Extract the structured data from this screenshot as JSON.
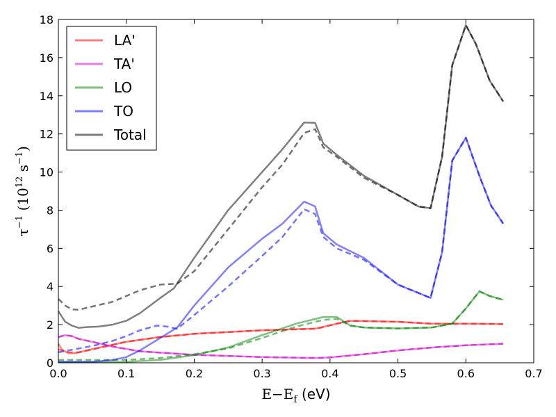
{
  "chart_data": {
    "type": "line",
    "xlabel": "E−E_f (eV)",
    "ylabel": "τ^−1 (10^12 s^−1)",
    "xlim": [
      0.0,
      0.7
    ],
    "ylim": [
      0,
      18
    ],
    "x_ticks": [
      "0.0",
      "0.1",
      "0.2",
      "0.3",
      "0.4",
      "0.5",
      "0.6",
      "0.7"
    ],
    "y_ticks": [
      "0",
      "2",
      "4",
      "6",
      "8",
      "10",
      "12",
      "14",
      "16",
      "18"
    ],
    "x_tick_values": [
      0.0,
      0.1,
      0.2,
      0.3,
      0.4,
      0.5,
      0.6,
      0.7
    ],
    "y_tick_values": [
      0,
      2,
      4,
      6,
      8,
      10,
      12,
      14,
      16,
      18
    ],
    "grid": false,
    "legend_position": "top-left",
    "series": [
      {
        "name": "LA'",
        "color": "#ff0000",
        "solid": [
          [
            0.0,
            1.0
          ],
          [
            0.005,
            0.7
          ],
          [
            0.015,
            0.5
          ],
          [
            0.025,
            0.5
          ],
          [
            0.05,
            0.72
          ],
          [
            0.1,
            1.1
          ],
          [
            0.15,
            1.35
          ],
          [
            0.2,
            1.52
          ],
          [
            0.3,
            1.7
          ],
          [
            0.38,
            1.8
          ],
          [
            0.41,
            2.05
          ],
          [
            0.43,
            2.2
          ],
          [
            0.5,
            2.15
          ],
          [
            0.55,
            2.05
          ],
          [
            0.6,
            2.05
          ],
          [
            0.655,
            2.03
          ]
        ],
        "dashed": [
          [
            0.0,
            0.7
          ],
          [
            0.015,
            0.55
          ],
          [
            0.03,
            0.55
          ],
          [
            0.05,
            0.7
          ],
          [
            0.1,
            1.1
          ],
          [
            0.15,
            1.35
          ],
          [
            0.2,
            1.52
          ],
          [
            0.3,
            1.7
          ],
          [
            0.38,
            1.78
          ],
          [
            0.41,
            2.05
          ],
          [
            0.43,
            2.2
          ],
          [
            0.5,
            2.15
          ],
          [
            0.55,
            2.05
          ],
          [
            0.6,
            2.05
          ],
          [
            0.655,
            2.03
          ]
        ]
      },
      {
        "name": "TA'",
        "color": "#cc00cc",
        "solid": [
          [
            0.0,
            1.35
          ],
          [
            0.01,
            1.45
          ],
          [
            0.02,
            1.4
          ],
          [
            0.03,
            1.25
          ],
          [
            0.05,
            1.1
          ],
          [
            0.08,
            0.85
          ],
          [
            0.12,
            0.6
          ],
          [
            0.2,
            0.42
          ],
          [
            0.3,
            0.3
          ],
          [
            0.38,
            0.25
          ],
          [
            0.4,
            0.28
          ],
          [
            0.45,
            0.45
          ],
          [
            0.5,
            0.65
          ],
          [
            0.55,
            0.8
          ],
          [
            0.6,
            0.92
          ],
          [
            0.655,
            1.0
          ]
        ],
        "dashed": [
          [
            0.0,
            1.35
          ],
          [
            0.01,
            1.45
          ],
          [
            0.02,
            1.4
          ],
          [
            0.03,
            1.25
          ],
          [
            0.05,
            1.1
          ],
          [
            0.08,
            0.85
          ],
          [
            0.12,
            0.6
          ],
          [
            0.2,
            0.42
          ],
          [
            0.3,
            0.3
          ],
          [
            0.38,
            0.25
          ],
          [
            0.4,
            0.28
          ],
          [
            0.45,
            0.45
          ],
          [
            0.5,
            0.65
          ],
          [
            0.55,
            0.8
          ],
          [
            0.6,
            0.92
          ],
          [
            0.655,
            1.0
          ]
        ]
      },
      {
        "name": "LO",
        "color": "#008000",
        "solid": [
          [
            0.0,
            0.05
          ],
          [
            0.1,
            0.05
          ],
          [
            0.15,
            0.15
          ],
          [
            0.2,
            0.4
          ],
          [
            0.25,
            0.8
          ],
          [
            0.3,
            1.45
          ],
          [
            0.35,
            2.05
          ],
          [
            0.39,
            2.4
          ],
          [
            0.41,
            2.4
          ],
          [
            0.43,
            1.95
          ],
          [
            0.45,
            1.85
          ],
          [
            0.5,
            1.8
          ],
          [
            0.55,
            1.85
          ],
          [
            0.58,
            2.05
          ],
          [
            0.6,
            2.85
          ],
          [
            0.62,
            3.75
          ],
          [
            0.635,
            3.5
          ],
          [
            0.655,
            3.3
          ]
        ],
        "dashed": [
          [
            0.0,
            0.15
          ],
          [
            0.1,
            0.15
          ],
          [
            0.15,
            0.25
          ],
          [
            0.2,
            0.45
          ],
          [
            0.25,
            0.75
          ],
          [
            0.3,
            1.3
          ],
          [
            0.35,
            1.9
          ],
          [
            0.39,
            2.25
          ],
          [
            0.41,
            2.3
          ],
          [
            0.43,
            1.95
          ],
          [
            0.45,
            1.85
          ],
          [
            0.5,
            1.8
          ],
          [
            0.55,
            1.85
          ],
          [
            0.58,
            2.05
          ],
          [
            0.6,
            2.85
          ],
          [
            0.62,
            3.75
          ],
          [
            0.635,
            3.5
          ],
          [
            0.655,
            3.3
          ]
        ]
      },
      {
        "name": "TO",
        "color": "#0000ff",
        "solid": [
          [
            0.0,
            0.05
          ],
          [
            0.05,
            0.05
          ],
          [
            0.08,
            0.15
          ],
          [
            0.1,
            0.3
          ],
          [
            0.12,
            0.65
          ],
          [
            0.15,
            1.3
          ],
          [
            0.175,
            1.85
          ],
          [
            0.2,
            3.0
          ],
          [
            0.25,
            5.0
          ],
          [
            0.3,
            6.5
          ],
          [
            0.33,
            7.3
          ],
          [
            0.362,
            8.45
          ],
          [
            0.378,
            8.2
          ],
          [
            0.39,
            6.8
          ],
          [
            0.41,
            6.2
          ],
          [
            0.45,
            5.5
          ],
          [
            0.5,
            4.1
          ],
          [
            0.548,
            3.4
          ],
          [
            0.565,
            5.8
          ],
          [
            0.58,
            10.6
          ],
          [
            0.6,
            11.8
          ],
          [
            0.62,
            9.8
          ],
          [
            0.637,
            8.25
          ],
          [
            0.655,
            7.3
          ]
        ],
        "dashed": [
          [
            0.0,
            0.55
          ],
          [
            0.02,
            0.68
          ],
          [
            0.05,
            0.88
          ],
          [
            0.08,
            1.15
          ],
          [
            0.1,
            1.4
          ],
          [
            0.12,
            1.7
          ],
          [
            0.145,
            1.95
          ],
          [
            0.16,
            1.9
          ],
          [
            0.175,
            1.78
          ],
          [
            0.2,
            2.5
          ],
          [
            0.25,
            4.0
          ],
          [
            0.3,
            5.6
          ],
          [
            0.33,
            6.6
          ],
          [
            0.362,
            8.05
          ],
          [
            0.378,
            7.8
          ],
          [
            0.39,
            6.6
          ],
          [
            0.41,
            6.0
          ],
          [
            0.45,
            5.4
          ],
          [
            0.5,
            4.1
          ],
          [
            0.548,
            3.4
          ],
          [
            0.565,
            5.8
          ],
          [
            0.58,
            10.6
          ],
          [
            0.6,
            11.8
          ],
          [
            0.62,
            9.8
          ],
          [
            0.637,
            8.25
          ],
          [
            0.655,
            7.3
          ]
        ]
      },
      {
        "name": "Total",
        "color": "#000000",
        "solid": [
          [
            0.0,
            2.7
          ],
          [
            0.01,
            2.15
          ],
          [
            0.02,
            1.95
          ],
          [
            0.03,
            1.83
          ],
          [
            0.04,
            1.87
          ],
          [
            0.06,
            1.9
          ],
          [
            0.08,
            2.0
          ],
          [
            0.1,
            2.2
          ],
          [
            0.12,
            2.6
          ],
          [
            0.15,
            3.4
          ],
          [
            0.17,
            3.9
          ],
          [
            0.2,
            5.5
          ],
          [
            0.25,
            8.0
          ],
          [
            0.3,
            10.0
          ],
          [
            0.33,
            11.2
          ],
          [
            0.362,
            12.6
          ],
          [
            0.378,
            12.58
          ],
          [
            0.39,
            11.5
          ],
          [
            0.41,
            10.9
          ],
          [
            0.45,
            9.8
          ],
          [
            0.5,
            8.8
          ],
          [
            0.53,
            8.2
          ],
          [
            0.548,
            8.1
          ],
          [
            0.565,
            10.8
          ],
          [
            0.58,
            15.6
          ],
          [
            0.6,
            17.7
          ],
          [
            0.615,
            16.7
          ],
          [
            0.635,
            14.8
          ],
          [
            0.655,
            13.7
          ]
        ],
        "dashed": [
          [
            0.0,
            3.35
          ],
          [
            0.01,
            3.0
          ],
          [
            0.02,
            2.8
          ],
          [
            0.03,
            2.78
          ],
          [
            0.05,
            2.95
          ],
          [
            0.08,
            3.2
          ],
          [
            0.1,
            3.5
          ],
          [
            0.12,
            3.8
          ],
          [
            0.15,
            4.1
          ],
          [
            0.175,
            4.15
          ],
          [
            0.2,
            4.8
          ],
          [
            0.25,
            7.0
          ],
          [
            0.3,
            9.2
          ],
          [
            0.33,
            10.4
          ],
          [
            0.362,
            12.05
          ],
          [
            0.378,
            12.25
          ],
          [
            0.39,
            11.3
          ],
          [
            0.41,
            10.8
          ],
          [
            0.45,
            9.7
          ],
          [
            0.5,
            8.8
          ],
          [
            0.53,
            8.2
          ],
          [
            0.548,
            8.1
          ],
          [
            0.565,
            10.8
          ],
          [
            0.58,
            15.6
          ],
          [
            0.6,
            17.7
          ],
          [
            0.615,
            16.7
          ],
          [
            0.635,
            14.8
          ],
          [
            0.655,
            13.7
          ]
        ]
      }
    ]
  }
}
